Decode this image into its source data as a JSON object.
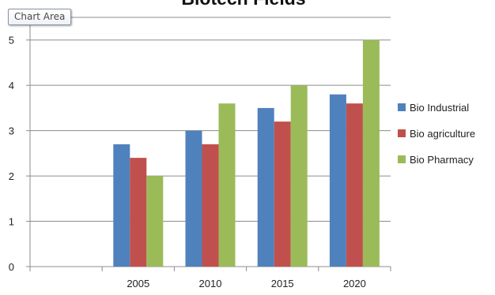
{
  "chart_data": {
    "type": "bar",
    "title": "Biotech Fields",
    "categories": [
      "",
      "2005",
      "2010",
      "2015",
      "2020"
    ],
    "series": [
      {
        "name": "Bio Industrial",
        "color": "#4f81bd",
        "values": [
          null,
          2.7,
          3.0,
          3.5,
          3.8
        ]
      },
      {
        "name": "Bio agriculture",
        "color": "#c0504d",
        "values": [
          null,
          2.4,
          2.7,
          3.2,
          3.6
        ]
      },
      {
        "name": "Bio Pharmacy",
        "color": "#9bbb59",
        "values": [
          null,
          2.0,
          3.6,
          4.0,
          5.0
        ]
      }
    ],
    "yticks": [
      "0",
      "1",
      "2",
      "3",
      "4",
      "5"
    ],
    "ylim": [
      0,
      5.5
    ],
    "grid": true,
    "legend_position": "right"
  },
  "tooltip": {
    "label": "Chart Area"
  }
}
